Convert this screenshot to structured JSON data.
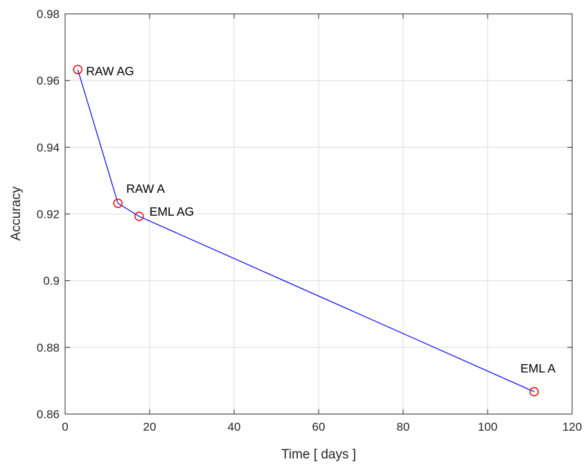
{
  "chart_data": {
    "type": "line",
    "xlabel": "Time [ days ]",
    "ylabel": "Accuracy",
    "xlim": [
      0,
      120
    ],
    "ylim": [
      0.86,
      0.98
    ],
    "x_ticks": [
      0,
      20,
      40,
      60,
      80,
      100,
      120
    ],
    "y_ticks": [
      0.86,
      0.88,
      0.9,
      0.92,
      0.94,
      0.96,
      0.98
    ],
    "x_tick_labels": [
      "0",
      "20",
      "40",
      "60",
      "80",
      "100",
      "120"
    ],
    "y_tick_labels": [
      "0.86",
      "0.88",
      "0.9",
      "0.92",
      "0.94",
      "0.96",
      "0.98"
    ],
    "grid": true,
    "line_color": "#0000ff",
    "marker_color": "#ff0000",
    "points": [
      {
        "x": 3.0,
        "y": 0.9633,
        "label": "RAW AG"
      },
      {
        "x": 12.5,
        "y": 0.9232,
        "label": "RAW A"
      },
      {
        "x": 17.5,
        "y": 0.9193,
        "label": "EML AG"
      },
      {
        "x": 111.0,
        "y": 0.8667,
        "label": "EML A"
      }
    ]
  }
}
